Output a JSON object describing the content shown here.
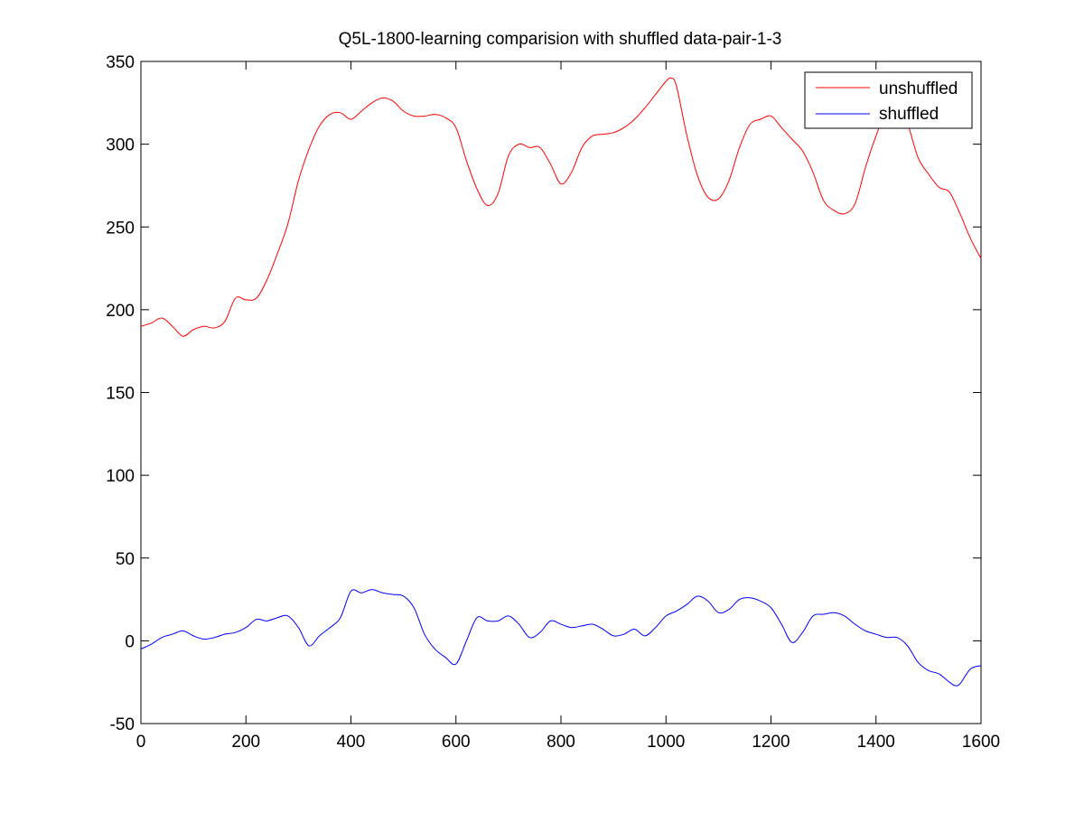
{
  "chart_data": {
    "type": "line",
    "title": "Q5L-1800-learning comparision with shuffled data-pair-1-3",
    "xlabel": "",
    "ylabel": "",
    "xlim": [
      0,
      1600
    ],
    "ylim": [
      -50,
      350
    ],
    "xticks": [
      0,
      200,
      400,
      600,
      800,
      1000,
      1200,
      1400,
      1600
    ],
    "xtick_labels": [
      "0",
      "200",
      "400",
      "600",
      "800",
      "1000",
      "1200",
      "1400",
      "1600"
    ],
    "yticks": [
      -50,
      0,
      50,
      100,
      150,
      200,
      250,
      300,
      350
    ],
    "ytick_labels": [
      "-50",
      "0",
      "50",
      "100",
      "150",
      "200",
      "250",
      "300",
      "350"
    ],
    "grid": false,
    "legend_position": "top-right",
    "series": [
      {
        "name": "unshuffled",
        "color": "#ff0000",
        "x": [
          0,
          20,
          40,
          60,
          80,
          100,
          120,
          140,
          160,
          180,
          200,
          220,
          240,
          260,
          280,
          300,
          320,
          340,
          360,
          380,
          400,
          420,
          440,
          460,
          480,
          500,
          520,
          540,
          560,
          580,
          600,
          620,
          640,
          660,
          680,
          700,
          720,
          740,
          760,
          780,
          800,
          820,
          840,
          860,
          880,
          900,
          920,
          940,
          960,
          980,
          1000,
          1010,
          1020,
          1040,
          1060,
          1080,
          1100,
          1120,
          1140,
          1160,
          1180,
          1200,
          1220,
          1240,
          1260,
          1280,
          1300,
          1320,
          1340,
          1360,
          1380,
          1400,
          1420,
          1440,
          1450,
          1460,
          1480,
          1500,
          1520,
          1540,
          1560,
          1580,
          1600
        ],
        "y": [
          190,
          192,
          195,
          190,
          184,
          188,
          190,
          189,
          193,
          207,
          206,
          207,
          218,
          234,
          252,
          278,
          297,
          311,
          318,
          319,
          315,
          320,
          325,
          328,
          326,
          320,
          317,
          317,
          318,
          316,
          310,
          290,
          273,
          263,
          270,
          293,
          300,
          298,
          298,
          288,
          276,
          283,
          298,
          305,
          306,
          307,
          310,
          315,
          322,
          330,
          338,
          340,
          335,
          305,
          281,
          268,
          267,
          278,
          298,
          312,
          315,
          317,
          310,
          303,
          296,
          283,
          266,
          260,
          258,
          264,
          286,
          305,
          320,
          322,
          320,
          313,
          292,
          282,
          274,
          271,
          258,
          243,
          231
        ]
      },
      {
        "name": "shuffled",
        "color": "#0000ff",
        "x": [
          0,
          20,
          40,
          60,
          80,
          100,
          120,
          140,
          160,
          180,
          200,
          220,
          240,
          260,
          280,
          300,
          320,
          340,
          360,
          380,
          400,
          420,
          440,
          460,
          480,
          500,
          520,
          540,
          560,
          580,
          600,
          620,
          640,
          660,
          680,
          700,
          720,
          740,
          760,
          780,
          800,
          820,
          840,
          860,
          880,
          900,
          920,
          940,
          960,
          980,
          1000,
          1020,
          1040,
          1060,
          1080,
          1100,
          1120,
          1140,
          1160,
          1180,
          1200,
          1220,
          1240,
          1260,
          1280,
          1300,
          1320,
          1340,
          1360,
          1380,
          1400,
          1420,
          1440,
          1460,
          1480,
          1500,
          1520,
          1540,
          1550,
          1560,
          1580,
          1600
        ],
        "y": [
          -5,
          -2,
          2,
          4,
          6,
          3,
          1,
          2,
          4,
          5,
          8,
          13,
          12,
          14,
          15,
          8,
          -3,
          3,
          8,
          14,
          30,
          29,
          31,
          29,
          28,
          27,
          20,
          4,
          -5,
          -10,
          -14,
          0,
          14,
          12,
          12,
          15,
          10,
          2,
          5,
          12,
          10,
          8,
          9,
          10,
          7,
          3,
          4,
          7,
          3,
          8,
          15,
          18,
          22,
          27,
          24,
          17,
          19,
          25,
          26,
          24,
          20,
          10,
          -1,
          5,
          15,
          16,
          17,
          15,
          10,
          6,
          4,
          2,
          2,
          -3,
          -13,
          -18,
          -20,
          -25,
          -27,
          -26,
          -17,
          -15
        ]
      }
    ]
  }
}
